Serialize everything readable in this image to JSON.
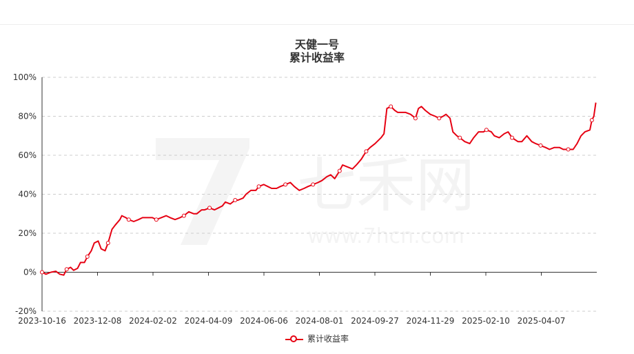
{
  "chart_data": {
    "type": "line",
    "title": "天健一号",
    "subtitle": "累计收益率",
    "xlabel": "",
    "ylabel": "",
    "ylim": [
      -20,
      100
    ],
    "yticks": [
      -20,
      0,
      20,
      40,
      60,
      80,
      100
    ],
    "ytick_labels": [
      "-20%",
      "0%",
      "20%",
      "40%",
      "60%",
      "80%",
      "100%"
    ],
    "xlim": [
      "2023-10-16",
      "2025-05-01"
    ],
    "xtick_labels": [
      "2023-10-16",
      "2023-12-08",
      "2024-02-02",
      "2024-04-09",
      "2024-06-06",
      "2024-08-01",
      "2024-09-27",
      "2024-11-29",
      "2025-02-10",
      "2025-04-07"
    ],
    "grid": true,
    "legend_position": "bottom",
    "colors": {
      "series": "#e60012",
      "grid": "#cccccc",
      "axis": "#333333"
    },
    "series": [
      {
        "name": "累计收益率",
        "points": [
          [
            "2023-10-16",
            0
          ],
          [
            "2023-10-20",
            -1
          ],
          [
            "2023-10-25",
            0
          ],
          [
            "2023-10-30",
            0.5
          ],
          [
            "2023-11-03",
            -1
          ],
          [
            "2023-11-07",
            -1.5
          ],
          [
            "2023-11-10",
            1.5
          ],
          [
            "2023-11-14",
            2.5
          ],
          [
            "2023-11-17",
            1
          ],
          [
            "2023-11-21",
            2
          ],
          [
            "2023-11-24",
            5
          ],
          [
            "2023-11-28",
            5
          ],
          [
            "2023-12-01",
            8
          ],
          [
            "2023-12-05",
            11
          ],
          [
            "2023-12-08",
            15
          ],
          [
            "2023-12-12",
            16
          ],
          [
            "2023-12-15",
            12
          ],
          [
            "2023-12-19",
            11
          ],
          [
            "2023-12-22",
            15
          ],
          [
            "2023-12-26",
            22
          ],
          [
            "2023-12-29",
            24
          ],
          [
            "2024-01-03",
            27
          ],
          [
            "2024-01-05",
            29
          ],
          [
            "2024-01-09",
            28
          ],
          [
            "2024-01-12",
            27
          ],
          [
            "2024-01-17",
            26
          ],
          [
            "2024-01-22",
            27
          ],
          [
            "2024-01-26",
            28
          ],
          [
            "2024-01-31",
            28
          ],
          [
            "2024-02-05",
            28
          ],
          [
            "2024-02-09",
            27
          ],
          [
            "2024-02-14",
            28
          ],
          [
            "2024-02-19",
            29
          ],
          [
            "2024-02-23",
            28
          ],
          [
            "2024-02-28",
            27
          ],
          [
            "2024-03-04",
            28
          ],
          [
            "2024-03-08",
            29
          ],
          [
            "2024-03-13",
            31
          ],
          [
            "2024-03-18",
            30
          ],
          [
            "2024-03-21",
            30
          ],
          [
            "2024-03-26",
            32
          ],
          [
            "2024-03-29",
            32
          ],
          [
            "2024-04-03",
            33
          ],
          [
            "2024-04-08",
            32
          ],
          [
            "2024-04-12",
            33
          ],
          [
            "2024-04-16",
            34
          ],
          [
            "2024-04-19",
            36
          ],
          [
            "2024-04-24",
            35
          ],
          [
            "2024-04-29",
            37
          ],
          [
            "2024-05-02",
            37
          ],
          [
            "2024-05-07",
            38
          ],
          [
            "2024-05-10",
            40
          ],
          [
            "2024-05-15",
            42
          ],
          [
            "2024-05-20",
            42
          ],
          [
            "2024-05-23",
            44
          ],
          [
            "2024-05-28",
            45
          ],
          [
            "2024-06-01",
            44
          ],
          [
            "2024-06-05",
            43
          ],
          [
            "2024-06-10",
            43
          ],
          [
            "2024-06-14",
            44
          ],
          [
            "2024-06-19",
            45
          ],
          [
            "2024-06-24",
            46
          ],
          [
            "2024-06-28",
            44
          ],
          [
            "2024-07-03",
            42
          ],
          [
            "2024-07-08",
            43
          ],
          [
            "2024-07-12",
            44
          ],
          [
            "2024-07-17",
            45
          ],
          [
            "2024-07-22",
            46
          ],
          [
            "2024-07-26",
            47
          ],
          [
            "2024-07-31",
            49
          ],
          [
            "2024-08-04",
            50
          ],
          [
            "2024-08-08",
            48
          ],
          [
            "2024-08-13",
            52
          ],
          [
            "2024-08-16",
            55
          ],
          [
            "2024-08-21",
            54
          ],
          [
            "2024-08-26",
            53
          ],
          [
            "2024-08-30",
            55
          ],
          [
            "2024-09-04",
            58
          ],
          [
            "2024-09-09",
            62
          ],
          [
            "2024-09-13",
            64
          ],
          [
            "2024-09-18",
            66
          ],
          [
            "2024-09-24",
            69
          ],
          [
            "2024-09-27",
            71
          ],
          [
            "2024-09-30",
            84
          ],
          [
            "2024-10-04",
            85
          ],
          [
            "2024-10-08",
            83
          ],
          [
            "2024-10-11",
            82
          ],
          [
            "2024-10-15",
            82
          ],
          [
            "2024-10-19",
            82
          ],
          [
            "2024-10-24",
            81
          ],
          [
            "2024-10-29",
            79
          ],
          [
            "2024-11-01",
            84
          ],
          [
            "2024-11-04",
            85
          ],
          [
            "2024-11-08",
            83
          ],
          [
            "2024-11-13",
            81
          ],
          [
            "2024-11-18",
            80
          ],
          [
            "2024-11-22",
            79
          ],
          [
            "2024-11-26",
            80
          ],
          [
            "2024-11-29",
            81
          ],
          [
            "2024-12-03",
            79
          ],
          [
            "2024-12-06",
            72
          ],
          [
            "2024-12-10",
            70
          ],
          [
            "2024-12-13",
            69
          ],
          [
            "2024-12-18",
            67
          ],
          [
            "2024-12-23",
            66
          ],
          [
            "2024-12-27",
            69
          ],
          [
            "2025-01-01",
            72
          ],
          [
            "2025-01-06",
            72
          ],
          [
            "2025-01-09",
            73
          ],
          [
            "2025-01-14",
            72
          ],
          [
            "2025-01-17",
            70
          ],
          [
            "2025-01-22",
            69
          ],
          [
            "2025-01-27",
            71
          ],
          [
            "2025-01-31",
            72
          ],
          [
            "2025-02-04",
            69
          ],
          [
            "2025-02-10",
            67
          ],
          [
            "2025-02-14",
            67
          ],
          [
            "2025-02-19",
            70
          ],
          [
            "2025-02-24",
            67
          ],
          [
            "2025-02-28",
            66
          ],
          [
            "2025-03-05",
            65
          ],
          [
            "2025-03-10",
            64
          ],
          [
            "2025-03-14",
            63
          ],
          [
            "2025-03-19",
            64
          ],
          [
            "2025-03-24",
            64
          ],
          [
            "2025-03-28",
            63
          ],
          [
            "2025-04-02",
            63
          ],
          [
            "2025-04-07",
            63
          ],
          [
            "2025-04-11",
            66
          ],
          [
            "2025-04-15",
            70
          ],
          [
            "2025-04-19",
            72
          ],
          [
            "2025-04-24",
            73
          ],
          [
            "2025-04-26",
            78
          ],
          [
            "2025-04-28",
            80
          ],
          [
            "2025-04-30",
            87
          ]
        ]
      }
    ]
  },
  "watermark": {
    "brand": "七禾网",
    "url": "www.7hcn.com"
  }
}
